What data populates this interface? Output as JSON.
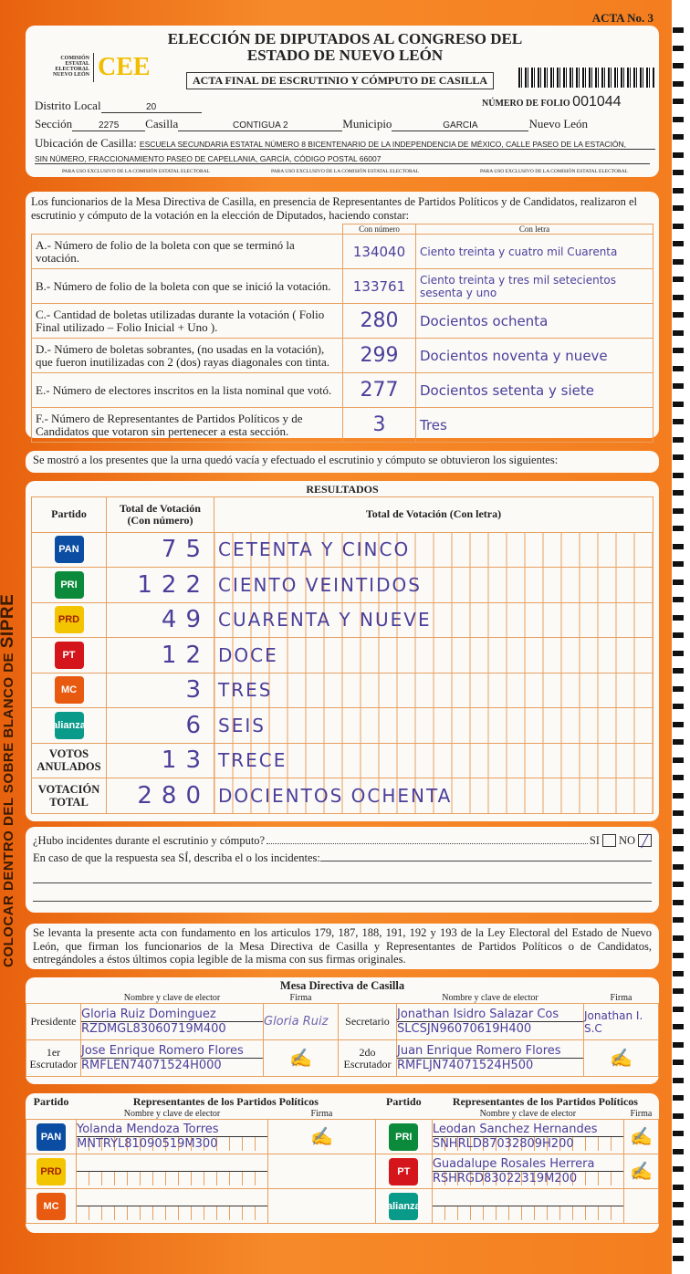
{
  "acta_no": "ACTA No. 3",
  "side_text": {
    "main": "COLOCAR DENTRO DEL SOBRE BLANCO DE ",
    "brand": "SIPRE"
  },
  "header": {
    "title1": "ELECCIÓN DE DIPUTADOS AL CONGRESO DEL",
    "title2": "ESTADO DE NUEVO LEÓN",
    "org": "COMISIÓN ESTATAL ELECTORAL NUEVO LEÓN",
    "logo": "CEE",
    "subtitle": "ACTA FINAL DE ESCRUTINIO Y CÓMPUTO DE CASILLA",
    "folio_label": "NÚMERO DE FOLIO",
    "folio": "001044",
    "distrito_label": "Distrito Local",
    "distrito": "20",
    "seccion_label": "Sección",
    "seccion": "2275",
    "casilla_label": "Casilla",
    "casilla": "CONTIGUA 2",
    "municipio_label": "Municipio",
    "municipio": "GARCIA",
    "estado": "Nuevo León",
    "ubicacion_label": "Ubicación de Casilla:",
    "ubicacion1": "ESCUELA SECUNDARIA ESTATAL NÚMERO 8 BICENTENARIO DE LA INDEPENDENCIA DE MÉXICO, CALLE PASEO DE LA ESTACIÓN,",
    "ubicacion2": "SIN NÚMERO, FRACCIONAMIENTO PASEO DE CAPELLANIA, GARCÍA, CÓDIGO POSTAL 66007",
    "exclusive": "PARA USO EXCLUSIVO DE LA COMISIÓN ESTATAL ELECTORAL"
  },
  "intro": "Los funcionarios de la Mesa Directiva de Casilla, en presencia de Representantes de Partidos Políticos  y de Candidatos, realizaron el escrutinio y cómputo de la votación en la elección de Diputados, haciendo constar:",
  "col_numero": "Con número",
  "col_letra": "Con letra",
  "items": [
    {
      "label": "A.- Número de folio de la boleta con que se terminó la votación.",
      "num": "134040",
      "letra": "Ciento treinta y cuatro mil Cuarenta"
    },
    {
      "label": "B.- Número de folio de la boleta con que se inició la votación.",
      "num": "133761",
      "letra": "Ciento treinta y tres mil setecientos sesenta y uno"
    },
    {
      "label": "C.- Cantidad de boletas utilizadas durante la votación ( Folio Final utilizado – Folio Inicial + Uno ).",
      "num": "280",
      "letra": "Docientos ochenta"
    },
    {
      "label": "D.- Número de boletas sobrantes, (no usadas en la votación), que fueron inutilizadas con 2 (dos) rayas diagonales con tinta.",
      "num": "299",
      "letra": "Docientos noventa y nueve"
    },
    {
      "label": "E.- Número de electores inscritos en la lista nominal que votó.",
      "num": "277",
      "letra": "Docientos setenta y siete"
    },
    {
      "label": "F.- Número de Representantes de Partidos Políticos y de Candidatos que votaron sin pertenecer a esta sección.",
      "num": "3",
      "letra": "Tres"
    }
  ],
  "shown": "Se mostró a los presentes que la urna quedó vacía y efectuado el escrutinio y cómputo se obtuvieron los siguientes:",
  "results": {
    "title": "RESULTADOS",
    "h_partido": "Partido",
    "h_num": "Total de Votación (Con número)",
    "h_letra": "Total de Votación (Con letra)",
    "rows": [
      {
        "party": "PAN",
        "color": "#0a4da2",
        "num": "75",
        "letra": "CETENTA Y CINCO"
      },
      {
        "party": "PRI",
        "color": "#0a8a3a",
        "num": "122",
        "letra": "CIENTO VEINTIDOS"
      },
      {
        "party": "PRD",
        "color": "#f2c500",
        "num": "49",
        "letra": "CUARENTA Y NUEVE"
      },
      {
        "party": "PT",
        "color": "#d4161c",
        "num": "12",
        "letra": "DOCE"
      },
      {
        "party": "MC",
        "color": "#e85a10",
        "num": "3",
        "letra": "TRES"
      },
      {
        "party": "alianza",
        "color": "#0a9a8a",
        "num": "6",
        "letra": "SEIS"
      }
    ],
    "anulados_label": "VOTOS ANULADOS",
    "anulados_num": "13",
    "anulados_letra": "TRECE",
    "total_label": "VOTACIÓN TOTAL",
    "total_num": "280",
    "total_letra": "DOCIENTOS OCHENTA"
  },
  "incidentes": {
    "question": "¿Hubo incidentes durante el escrutinio y cómputo?",
    "si": "SI",
    "no": "NO",
    "describe": "En caso de que la respuesta sea SÍ, describa el o los incidentes:",
    "answer": "NO"
  },
  "legal": "Se levanta la presente acta con fundamento en los articulos 179, 187, 188, 191, 192 y 193 de la Ley Electoral del Estado de Nuevo León, que firman los funcionarios de la Mesa Directiva de Casilla y Representantes de Partidos Políticos o de Candidatos, entregándoles a éstos últimos copia legible de la misma con sus firmas originales.",
  "mesa": {
    "title": "Mesa Directiva de Casilla",
    "h_nombre": "Nombre y clave de elector",
    "h_firma": "Firma",
    "presidente": {
      "role": "Presidente",
      "name": "Gloria Ruiz Dominguez",
      "clave": "RZDMGL83060719M400",
      "firma": "Gloria Ruiz"
    },
    "secretario": {
      "role": "Secretario",
      "name": "Jonathan Isidro Salazar Cos",
      "clave": "SLCSJN96070619H400",
      "firma": "Jonathan I. S.C"
    },
    "escrutador1": {
      "role": "1er Escrutador",
      "name": "Jose Enrique Romero Flores",
      "clave": "RMFLEN74071524H000"
    },
    "escrutador2": {
      "role": "2do Escrutador",
      "name": "Juan Enrique Romero Flores",
      "clave": "RMFLJN74071524H500"
    }
  },
  "reps": {
    "h_partido": "Partido",
    "h_title": "Representantes de los Partidos Políticos",
    "h_nombre": "Nombre y clave de elector",
    "h_firma": "Firma",
    "left": [
      {
        "party": "PAN",
        "color": "#0a4da2",
        "name": "Yolanda Mendoza Torres",
        "clave": "MNTRYL81090519M300"
      },
      {
        "party": "PRD",
        "color": "#f2c500",
        "name": "",
        "clave": ""
      },
      {
        "party": "MC",
        "color": "#e85a10",
        "name": "",
        "clave": ""
      }
    ],
    "right": [
      {
        "party": "PRI",
        "color": "#0a8a3a",
        "name": "Leodan Sanchez Hernandes",
        "clave": "SNHRLD87032809H200"
      },
      {
        "party": "PT",
        "color": "#d4161c",
        "name": "Guadalupe Rosales Herrera",
        "clave": "RSHRGD83022319M200"
      },
      {
        "party": "alianza",
        "color": "#0a9a8a",
        "name": "",
        "clave": ""
      }
    ]
  }
}
